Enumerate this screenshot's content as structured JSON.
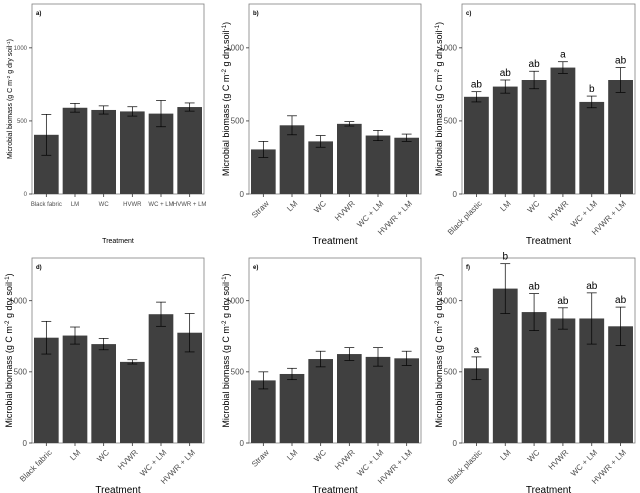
{
  "figure": {
    "background": "#ffffff",
    "panel_background": "#ffffff",
    "panel_border": "#7f7f7f",
    "bar_color": "#404040",
    "error_bar_color": "#000000"
  },
  "chart_data": [
    {
      "type": "bar",
      "panel_label": "a)",
      "categories": [
        "Black fabric",
        "LM",
        "WC",
        "HVWR",
        "WC + LM",
        "HVWR + LM"
      ],
      "values": [
        405,
        590,
        575,
        565,
        550,
        595
      ],
      "errors": [
        140,
        30,
        28,
        32,
        90,
        28
      ],
      "letters": [],
      "ylabel": "Microbial biomass (g C m",
      "ylabel_sup1": "-2",
      "ylabel_mid": " g dry soil",
      "ylabel_sup2": "-1",
      "ylabel_end": ")",
      "xlabel": "Treatment",
      "ylim": [
        0,
        1300
      ],
      "yticks": [
        0,
        500,
        1000
      ],
      "tick_rotation": 0,
      "grid": false
    },
    {
      "type": "bar",
      "panel_label": "b)",
      "categories": [
        "Straw",
        "LM",
        "WC",
        "HVWR",
        "WC + LM",
        "HVWR + LM"
      ],
      "values": [
        305,
        470,
        360,
        480,
        400,
        385
      ],
      "errors": [
        55,
        65,
        40,
        15,
        35,
        25
      ],
      "letters": [],
      "ylabel": "Microbial biomass (g C m",
      "ylabel_sup1": "-2",
      "ylabel_mid": " g dry soil",
      "ylabel_sup2": "-1",
      "ylabel_end": ")",
      "xlabel": "Treatment",
      "ylim": [
        0,
        1300
      ],
      "yticks": [
        0,
        500,
        1000
      ],
      "tick_rotation": -45,
      "grid": false
    },
    {
      "type": "bar",
      "panel_label": "c)",
      "categories": [
        "Black plastic",
        "LM",
        "WC",
        "HVWR",
        "WC + LM",
        "HVWR + LM"
      ],
      "values": [
        665,
        735,
        780,
        865,
        630,
        780
      ],
      "errors": [
        35,
        45,
        60,
        40,
        40,
        85
      ],
      "letters": [
        "ab",
        "ab",
        "ab",
        "a",
        "b",
        "ab"
      ],
      "ylabel": "Microbial biomass (g C m",
      "ylabel_sup1": "-2",
      "ylabel_mid": " g dry soil",
      "ylabel_sup2": "-1",
      "ylabel_end": ")",
      "xlabel": "Treatment",
      "ylim": [
        0,
        1300
      ],
      "yticks": [
        0,
        500,
        1000
      ],
      "tick_rotation": -45,
      "grid": false
    },
    {
      "type": "bar",
      "panel_label": "d)",
      "categories": [
        "Black fabric",
        "LM",
        "WC",
        "HVWR",
        "WC + LM",
        "HVWR + LM"
      ],
      "values": [
        740,
        755,
        695,
        570,
        905,
        775
      ],
      "errors": [
        115,
        60,
        40,
        15,
        85,
        135
      ],
      "letters": [],
      "ylabel": "Microbial biomass (g C m",
      "ylabel_sup1": "-2",
      "ylabel_mid": " g dry soil",
      "ylabel_sup2": "-1",
      "ylabel_end": ")",
      "xlabel": "Treatment",
      "ylim": [
        0,
        1300
      ],
      "yticks": [
        0,
        500,
        1000
      ],
      "tick_rotation": -45,
      "grid": false
    },
    {
      "type": "bar",
      "panel_label": "e)",
      "categories": [
        "Straw",
        "LM",
        "WC",
        "HVWR",
        "WC + LM",
        "HVWR + LM"
      ],
      "values": [
        440,
        485,
        590,
        625,
        605,
        595
      ],
      "errors": [
        60,
        40,
        55,
        45,
        65,
        50
      ],
      "letters": [],
      "ylabel": "Microbial biomass (g C m",
      "ylabel_sup1": "-2",
      "ylabel_mid": " g dry soil",
      "ylabel_sup2": "-1",
      "ylabel_end": ")",
      "xlabel": "Treatment",
      "ylim": [
        0,
        1300
      ],
      "yticks": [
        0,
        500,
        1000
      ],
      "tick_rotation": -45,
      "grid": false
    },
    {
      "type": "bar",
      "panel_label": "f)",
      "categories": [
        "Black plastic",
        "LM",
        "WC",
        "HVWR",
        "WC + LM",
        "HVWR + LM"
      ],
      "values": [
        525,
        1085,
        920,
        875,
        875,
        820
      ],
      "errors": [
        80,
        175,
        130,
        75,
        180,
        135
      ],
      "letters": [
        "a",
        "b",
        "ab",
        "ab",
        "ab",
        "ab"
      ],
      "ylabel": "Microbial biomass (g C m",
      "ylabel_sup1": "-2",
      "ylabel_mid": " g dry soil",
      "ylabel_sup2": "-1",
      "ylabel_end": ")",
      "xlabel": "Treatment",
      "ylim": [
        0,
        1300
      ],
      "yticks": [
        0,
        500,
        1000
      ],
      "tick_rotation": -45,
      "grid": false
    }
  ]
}
